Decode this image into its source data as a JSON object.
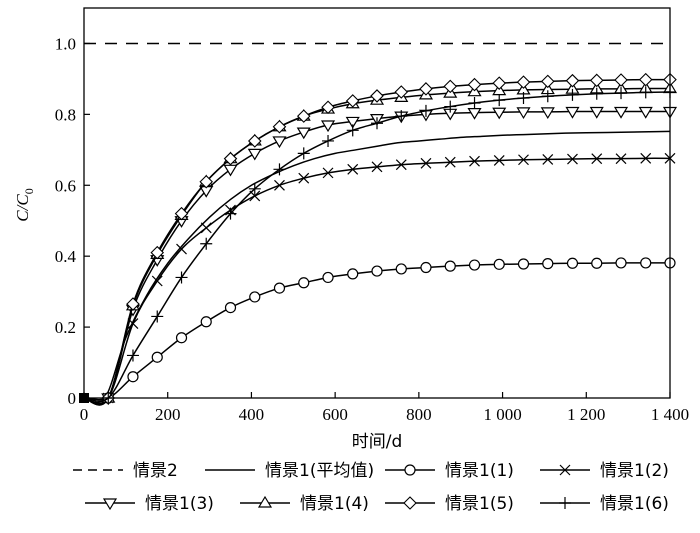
{
  "chart_data": {
    "type": "line",
    "xlabel": "时间/d",
    "ylabel": "C/C0",
    "ylabel_parts": {
      "main": "C/C",
      "sub": "0"
    },
    "xlim": [
      0,
      1400
    ],
    "ylim": [
      0,
      1.1
    ],
    "x_ticks": [
      0,
      200,
      400,
      600,
      800,
      1000,
      1200,
      1400
    ],
    "x_tick_labels": [
      "0",
      "200",
      "400",
      "600",
      "800",
      "1 000",
      "1 200",
      "1 400"
    ],
    "y_ticks": [
      0,
      0.2,
      0.4,
      0.6,
      0.8,
      1.0
    ],
    "y_tick_labels": [
      "0",
      "0.2",
      "0.4",
      "0.6",
      "0.8",
      "1.0"
    ],
    "grid": false,
    "legend_position": "bottom",
    "series": [
      {
        "name": "情景2",
        "style": "dashed",
        "marker": "none",
        "x": [
          0,
          1400
        ],
        "y": [
          1.0,
          1.0
        ]
      },
      {
        "name": "情景1(平均值)",
        "style": "solid",
        "marker": "none",
        "x": [
          0,
          50,
          100,
          150,
          200,
          250,
          300,
          350,
          400,
          450,
          500,
          550,
          600,
          650,
          700,
          750,
          800,
          850,
          900,
          950,
          1000,
          1050,
          1100,
          1150,
          1200,
          1250,
          1300,
          1350,
          1400
        ],
        "y": [
          0,
          0.0,
          0.17,
          0.29,
          0.38,
          0.45,
          0.51,
          0.56,
          0.6,
          0.63,
          0.655,
          0.675,
          0.69,
          0.7,
          0.71,
          0.72,
          0.725,
          0.73,
          0.735,
          0.738,
          0.741,
          0.743,
          0.745,
          0.747,
          0.748,
          0.749,
          0.75,
          0.751,
          0.752
        ]
      },
      {
        "name": "情景1(1)",
        "style": "solid",
        "marker": "circle",
        "x": [
          0,
          58,
          117,
          175,
          233,
          292,
          350,
          408,
          467,
          525,
          583,
          642,
          700,
          758,
          817,
          875,
          933,
          992,
          1050,
          1108,
          1167,
          1225,
          1283,
          1342,
          1400
        ],
        "y": [
          0,
          0.0,
          0.06,
          0.115,
          0.17,
          0.215,
          0.255,
          0.285,
          0.31,
          0.325,
          0.34,
          0.35,
          0.358,
          0.364,
          0.368,
          0.372,
          0.375,
          0.377,
          0.378,
          0.379,
          0.38,
          0.38,
          0.381,
          0.381,
          0.381
        ]
      },
      {
        "name": "情景1(2)",
        "style": "solid",
        "marker": "x",
        "x": [
          0,
          58,
          117,
          175,
          233,
          292,
          350,
          408,
          467,
          525,
          583,
          642,
          700,
          758,
          817,
          875,
          933,
          992,
          1050,
          1108,
          1167,
          1225,
          1283,
          1342,
          1400
        ],
        "y": [
          0,
          0.0,
          0.21,
          0.33,
          0.42,
          0.48,
          0.53,
          0.57,
          0.6,
          0.62,
          0.635,
          0.645,
          0.652,
          0.658,
          0.662,
          0.665,
          0.668,
          0.67,
          0.672,
          0.673,
          0.674,
          0.675,
          0.675,
          0.676,
          0.676
        ]
      },
      {
        "name": "情景1(3)",
        "style": "solid",
        "marker": "triangle-down",
        "x": [
          0,
          58,
          117,
          175,
          233,
          292,
          350,
          408,
          467,
          525,
          583,
          642,
          700,
          758,
          817,
          875,
          933,
          992,
          1050,
          1108,
          1167,
          1225,
          1283,
          1342,
          1400
        ],
        "y": [
          0,
          0.0,
          0.25,
          0.39,
          0.5,
          0.585,
          0.645,
          0.69,
          0.725,
          0.75,
          0.77,
          0.78,
          0.788,
          0.795,
          0.8,
          0.803,
          0.805,
          0.806,
          0.807,
          0.807,
          0.808,
          0.808,
          0.808,
          0.808,
          0.808
        ]
      },
      {
        "name": "情景1(4)",
        "style": "solid",
        "marker": "triangle-up",
        "x": [
          0,
          58,
          117,
          175,
          233,
          292,
          350,
          408,
          467,
          525,
          583,
          642,
          700,
          758,
          817,
          875,
          933,
          992,
          1050,
          1108,
          1167,
          1225,
          1283,
          1342,
          1400
        ],
        "y": [
          0,
          0.0,
          0.26,
          0.405,
          0.515,
          0.61,
          0.675,
          0.725,
          0.765,
          0.795,
          0.815,
          0.83,
          0.84,
          0.848,
          0.855,
          0.86,
          0.864,
          0.867,
          0.869,
          0.87,
          0.871,
          0.872,
          0.872,
          0.873,
          0.873
        ]
      },
      {
        "name": "情景1(5)",
        "style": "solid",
        "marker": "diamond",
        "x": [
          0,
          58,
          117,
          175,
          233,
          292,
          350,
          408,
          467,
          525,
          583,
          642,
          700,
          758,
          817,
          875,
          933,
          992,
          1050,
          1108,
          1167,
          1225,
          1283,
          1342,
          1400
        ],
        "y": [
          0,
          0.0,
          0.265,
          0.41,
          0.52,
          0.61,
          0.675,
          0.725,
          0.765,
          0.795,
          0.82,
          0.838,
          0.852,
          0.863,
          0.872,
          0.879,
          0.884,
          0.888,
          0.891,
          0.893,
          0.895,
          0.896,
          0.897,
          0.898,
          0.898
        ]
      },
      {
        "name": "情景1(6)",
        "style": "solid",
        "marker": "plus",
        "x": [
          0,
          58,
          117,
          175,
          233,
          292,
          350,
          408,
          467,
          525,
          583,
          642,
          700,
          758,
          817,
          875,
          933,
          992,
          1050,
          1108,
          1167,
          1225,
          1283,
          1342,
          1400
        ],
        "y": [
          0,
          0.0,
          0.12,
          0.23,
          0.34,
          0.435,
          0.52,
          0.59,
          0.645,
          0.69,
          0.725,
          0.755,
          0.775,
          0.795,
          0.81,
          0.822,
          0.832,
          0.84,
          0.846,
          0.851,
          0.855,
          0.858,
          0.86,
          0.862,
          0.863
        ]
      }
    ]
  }
}
